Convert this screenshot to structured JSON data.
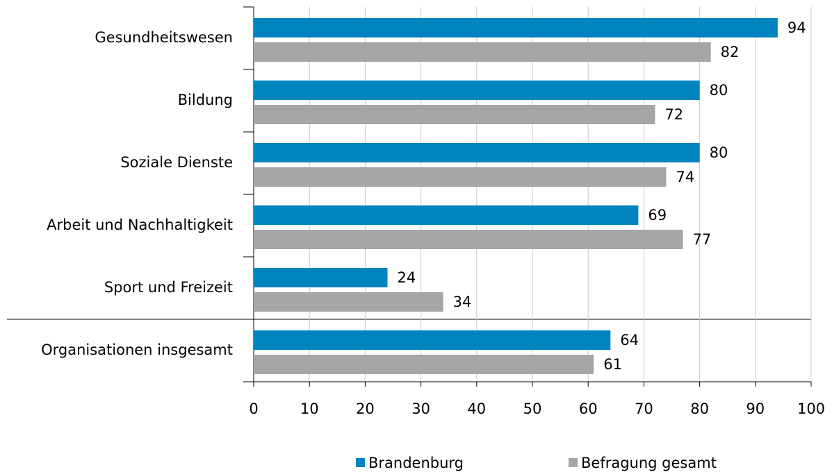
{
  "chart_data": {
    "type": "bar",
    "orientation": "horizontal",
    "categories": [
      "Gesundheitswesen",
      "Bildung",
      "Soziale Dienste",
      "Arbeit und Nachhaltigkeit",
      "Sport und Freizeit",
      "Organisationen insgesamt"
    ],
    "series": [
      {
        "name": "Brandenburg",
        "color": "#0083bf",
        "values": [
          94,
          80,
          80,
          69,
          24,
          64
        ]
      },
      {
        "name": "Befragung gesamt",
        "color": "#a6a6a6",
        "values": [
          82,
          72,
          74,
          77,
          34,
          61
        ]
      }
    ],
    "xlim": [
      0,
      100
    ],
    "xticks": [
      0,
      10,
      20,
      30,
      40,
      50,
      60,
      70,
      80,
      90,
      100
    ],
    "grid": true,
    "legend": "bottom"
  }
}
